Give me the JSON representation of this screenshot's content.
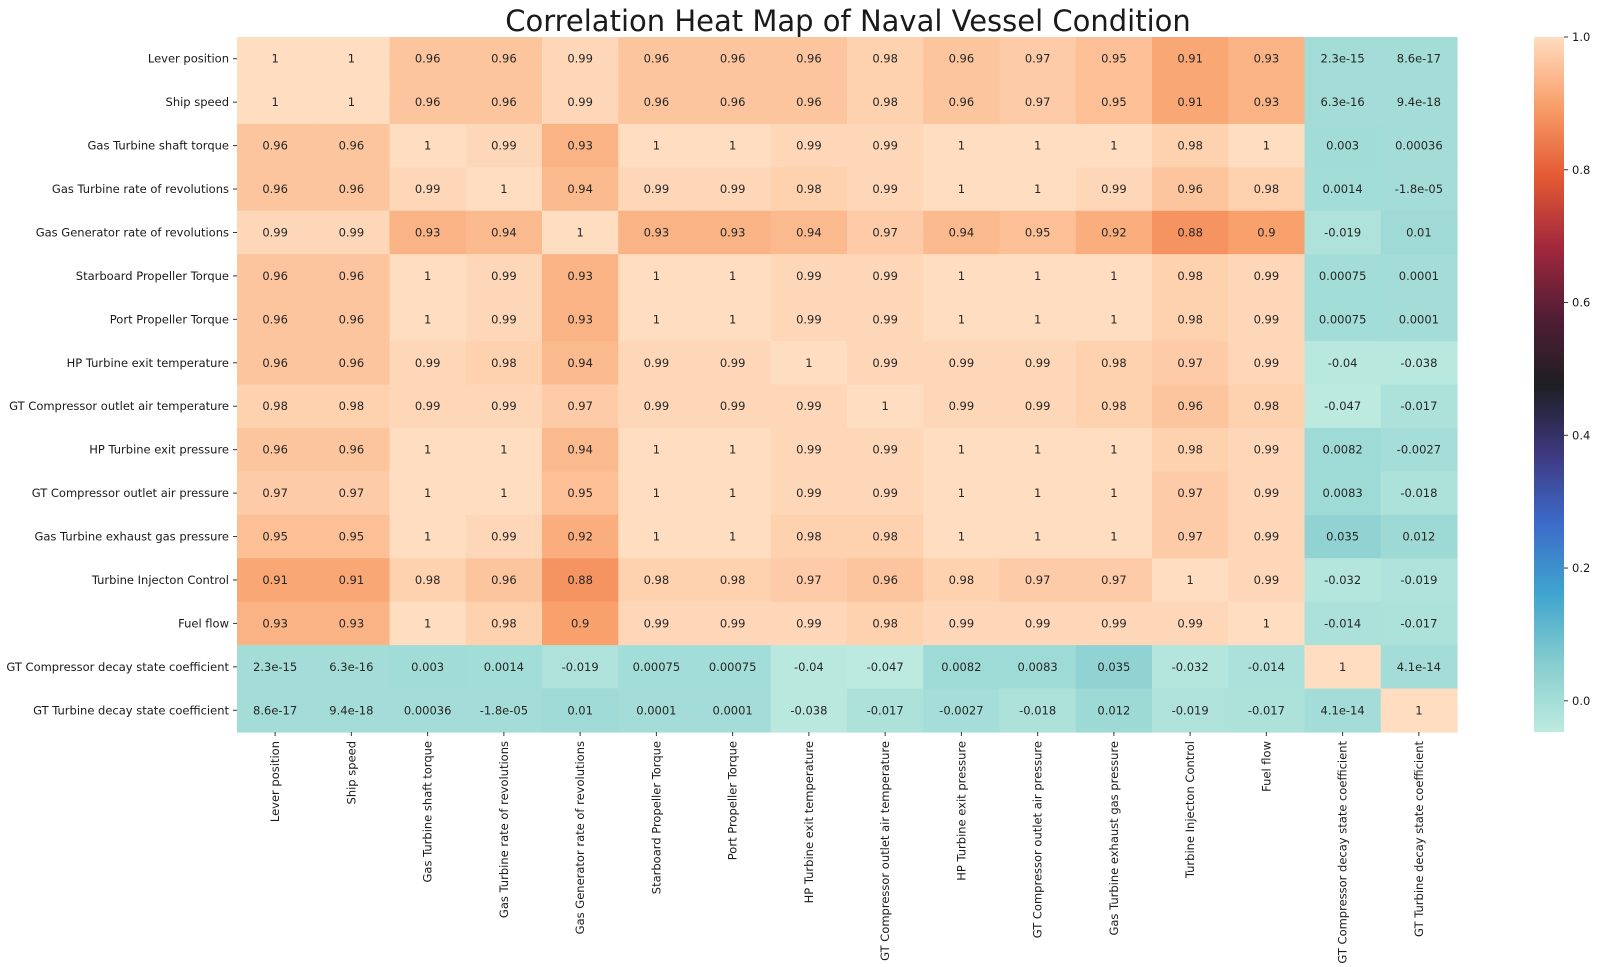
{
  "chart_data": {
    "type": "heatmap",
    "title": "Correlation Heat Map of Naval Vessel Condition",
    "labels": [
      "Lever position",
      "Ship speed",
      "Gas Turbine shaft torque",
      "Gas Turbine rate of revolutions",
      "Gas Generator rate of revolutions",
      "Starboard Propeller Torque",
      "Port Propeller Torque",
      "HP Turbine exit temperature",
      "GT Compressor outlet air temperature",
      "HP Turbine exit pressure",
      "GT Compressor outlet air pressure",
      "Gas Turbine exhaust gas pressure",
      "Turbine Injecton Control",
      "Fuel flow",
      "GT Compressor decay state coefficient",
      "GT Turbine decay state coefficient"
    ],
    "values": [
      [
        1,
        1,
        0.96,
        0.96,
        0.99,
        0.96,
        0.96,
        0.96,
        0.98,
        0.96,
        0.97,
        0.95,
        0.91,
        0.93,
        2.3e-15,
        8.6e-17
      ],
      [
        1,
        1,
        0.96,
        0.96,
        0.99,
        0.96,
        0.96,
        0.96,
        0.98,
        0.96,
        0.97,
        0.95,
        0.91,
        0.93,
        6.3e-16,
        9.4e-18
      ],
      [
        0.96,
        0.96,
        1,
        0.99,
        0.93,
        1,
        1,
        0.99,
        0.99,
        1,
        1,
        1,
        0.98,
        1,
        0.003,
        0.00036
      ],
      [
        0.96,
        0.96,
        0.99,
        1,
        0.94,
        0.99,
        0.99,
        0.98,
        0.99,
        1,
        1,
        0.99,
        0.96,
        0.98,
        0.0014,
        -1.8e-05
      ],
      [
        0.99,
        0.99,
        0.93,
        0.94,
        1,
        0.93,
        0.93,
        0.94,
        0.97,
        0.94,
        0.95,
        0.92,
        0.88,
        0.9,
        -0.019,
        0.01
      ],
      [
        0.96,
        0.96,
        1,
        0.99,
        0.93,
        1,
        1,
        0.99,
        0.99,
        1,
        1,
        1,
        0.98,
        0.99,
        0.00075,
        0.0001
      ],
      [
        0.96,
        0.96,
        1,
        0.99,
        0.93,
        1,
        1,
        0.99,
        0.99,
        1,
        1,
        1,
        0.98,
        0.99,
        0.00075,
        0.0001
      ],
      [
        0.96,
        0.96,
        0.99,
        0.98,
        0.94,
        0.99,
        0.99,
        1,
        0.99,
        0.99,
        0.99,
        0.98,
        0.97,
        0.99,
        -0.04,
        -0.038
      ],
      [
        0.98,
        0.98,
        0.99,
        0.99,
        0.97,
        0.99,
        0.99,
        0.99,
        1,
        0.99,
        0.99,
        0.98,
        0.96,
        0.98,
        -0.047,
        -0.017
      ],
      [
        0.96,
        0.96,
        1,
        1,
        0.94,
        1,
        1,
        0.99,
        0.99,
        1,
        1,
        1,
        0.98,
        0.99,
        0.0082,
        -0.0027
      ],
      [
        0.97,
        0.97,
        1,
        1,
        0.95,
        1,
        1,
        0.99,
        0.99,
        1,
        1,
        1,
        0.97,
        0.99,
        0.0083,
        -0.018
      ],
      [
        0.95,
        0.95,
        1,
        0.99,
        0.92,
        1,
        1,
        0.98,
        0.98,
        1,
        1,
        1,
        0.97,
        0.99,
        0.035,
        0.012
      ],
      [
        0.91,
        0.91,
        0.98,
        0.96,
        0.88,
        0.98,
        0.98,
        0.97,
        0.96,
        0.98,
        0.97,
        0.97,
        1,
        0.99,
        -0.032,
        -0.019
      ],
      [
        0.93,
        0.93,
        1,
        0.98,
        0.9,
        0.99,
        0.99,
        0.99,
        0.98,
        0.99,
        0.99,
        0.99,
        0.99,
        1,
        -0.014,
        -0.017
      ],
      [
        2.3e-15,
        6.3e-16,
        0.003,
        0.0014,
        -0.019,
        0.00075,
        0.00075,
        -0.04,
        -0.047,
        0.0082,
        0.0083,
        0.035,
        -0.032,
        -0.014,
        1,
        4.1e-14
      ],
      [
        8.6e-17,
        9.4e-18,
        0.00036,
        -1.8e-05,
        0.01,
        0.0001,
        0.0001,
        -0.038,
        -0.017,
        -0.0027,
        -0.018,
        0.012,
        -0.019,
        -0.017,
        4.1e-14,
        1
      ]
    ],
    "display": [
      [
        "1",
        "1",
        "0.96",
        "0.96",
        "0.99",
        "0.96",
        "0.96",
        "0.96",
        "0.98",
        "0.96",
        "0.97",
        "0.95",
        "0.91",
        "0.93",
        "2.3e-15",
        "8.6e-17"
      ],
      [
        "1",
        "1",
        "0.96",
        "0.96",
        "0.99",
        "0.96",
        "0.96",
        "0.96",
        "0.98",
        "0.96",
        "0.97",
        "0.95",
        "0.91",
        "0.93",
        "6.3e-16",
        "9.4e-18"
      ],
      [
        "0.96",
        "0.96",
        "1",
        "0.99",
        "0.93",
        "1",
        "1",
        "0.99",
        "0.99",
        "1",
        "1",
        "1",
        "0.98",
        "1",
        "0.003",
        "0.00036"
      ],
      [
        "0.96",
        "0.96",
        "0.99",
        "1",
        "0.94",
        "0.99",
        "0.99",
        "0.98",
        "0.99",
        "1",
        "1",
        "0.99",
        "0.96",
        "0.98",
        "0.0014",
        "-1.8e-05"
      ],
      [
        "0.99",
        "0.99",
        "0.93",
        "0.94",
        "1",
        "0.93",
        "0.93",
        "0.94",
        "0.97",
        "0.94",
        "0.95",
        "0.92",
        "0.88",
        "0.9",
        "-0.019",
        "0.01"
      ],
      [
        "0.96",
        "0.96",
        "1",
        "0.99",
        "0.93",
        "1",
        "1",
        "0.99",
        "0.99",
        "1",
        "1",
        "1",
        "0.98",
        "0.99",
        "0.00075",
        "0.0001"
      ],
      [
        "0.96",
        "0.96",
        "1",
        "0.99",
        "0.93",
        "1",
        "1",
        "0.99",
        "0.99",
        "1",
        "1",
        "1",
        "0.98",
        "0.99",
        "0.00075",
        "0.0001"
      ],
      [
        "0.96",
        "0.96",
        "0.99",
        "0.98",
        "0.94",
        "0.99",
        "0.99",
        "1",
        "0.99",
        "0.99",
        "0.99",
        "0.98",
        "0.97",
        "0.99",
        "-0.04",
        "-0.038"
      ],
      [
        "0.98",
        "0.98",
        "0.99",
        "0.99",
        "0.97",
        "0.99",
        "0.99",
        "0.99",
        "1",
        "0.99",
        "0.99",
        "0.98",
        "0.96",
        "0.98",
        "-0.047",
        "-0.017"
      ],
      [
        "0.96",
        "0.96",
        "1",
        "1",
        "0.94",
        "1",
        "1",
        "0.99",
        "0.99",
        "1",
        "1",
        "1",
        "0.98",
        "0.99",
        "0.0082",
        "-0.0027"
      ],
      [
        "0.97",
        "0.97",
        "1",
        "1",
        "0.95",
        "1",
        "1",
        "0.99",
        "0.99",
        "1",
        "1",
        "1",
        "0.97",
        "0.99",
        "0.0083",
        "-0.018"
      ],
      [
        "0.95",
        "0.95",
        "1",
        "0.99",
        "0.92",
        "1",
        "1",
        "0.98",
        "0.98",
        "1",
        "1",
        "1",
        "0.97",
        "0.99",
        "0.035",
        "0.012"
      ],
      [
        "0.91",
        "0.91",
        "0.98",
        "0.96",
        "0.88",
        "0.98",
        "0.98",
        "0.97",
        "0.96",
        "0.98",
        "0.97",
        "0.97",
        "1",
        "0.99",
        "-0.032",
        "-0.019"
      ],
      [
        "0.93",
        "0.93",
        "1",
        "0.98",
        "0.9",
        "0.99",
        "0.99",
        "0.99",
        "0.98",
        "0.99",
        "0.99",
        "0.99",
        "0.99",
        "1",
        "-0.014",
        "-0.017"
      ],
      [
        "2.3e-15",
        "6.3e-16",
        "0.003",
        "0.0014",
        "-0.019",
        "0.00075",
        "0.00075",
        "-0.04",
        "-0.047",
        "0.0082",
        "0.0083",
        "0.035",
        "-0.032",
        "-0.014",
        "1",
        "4.1e-14"
      ],
      [
        "8.6e-17",
        "9.4e-18",
        "0.00036",
        "-1.8e-05",
        "0.01",
        "0.0001",
        "0.0001",
        "-0.038",
        "-0.017",
        "-0.0027",
        "-0.018",
        "0.012",
        "-0.019",
        "-0.017",
        "4.1e-14",
        "1"
      ]
    ],
    "colorbar": {
      "range": [
        -0.047,
        1
      ],
      "ticks": [
        "0.0",
        "0.2",
        "0.4",
        "0.6",
        "0.8",
        "1.0"
      ],
      "colormap": "icefire"
    }
  }
}
